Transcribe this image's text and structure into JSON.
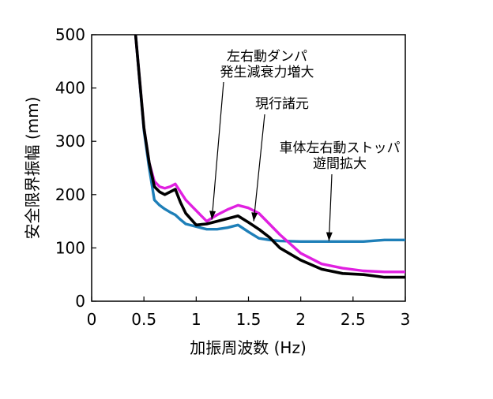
{
  "chart_data": {
    "type": "line",
    "xlabel": "加振周波数 (Hz)",
    "ylabel": "安全限界振幅 (mm)",
    "xlim": [
      0,
      3
    ],
    "ylim": [
      0,
      500
    ],
    "xticks": [
      "0",
      "0.5",
      "1",
      "1.5",
      "2",
      "2.5",
      "3"
    ],
    "yticks": [
      "0",
      "100",
      "200",
      "300",
      "400",
      "500"
    ],
    "grid": false,
    "series": [
      {
        "name": "現行諸元",
        "color": "#000000",
        "x": [
          0.42,
          0.5,
          0.55,
          0.6,
          0.65,
          0.7,
          0.75,
          0.8,
          0.85,
          0.9,
          1.0,
          1.1,
          1.2,
          1.3,
          1.4,
          1.5,
          1.6,
          1.7,
          1.8,
          2.0,
          2.2,
          2.4,
          2.6,
          2.8,
          3.0
        ],
        "y": [
          500,
          325,
          260,
          215,
          205,
          200,
          205,
          210,
          185,
          165,
          143,
          145,
          150,
          155,
          160,
          148,
          135,
          120,
          100,
          77,
          60,
          52,
          50,
          45,
          45
        ]
      },
      {
        "name": "左右動ダンパ発生減衰力増大",
        "color": "#e020e0",
        "x": [
          0.42,
          0.5,
          0.55,
          0.6,
          0.65,
          0.7,
          0.75,
          0.8,
          0.85,
          0.9,
          1.0,
          1.1,
          1.2,
          1.3,
          1.4,
          1.5,
          1.6,
          1.7,
          1.8,
          2.0,
          2.2,
          2.4,
          2.6,
          2.8,
          3.0
        ],
        "y": [
          500,
          325,
          260,
          225,
          215,
          212,
          215,
          220,
          205,
          190,
          170,
          150,
          162,
          172,
          180,
          175,
          165,
          145,
          125,
          90,
          70,
          62,
          57,
          55,
          55
        ]
      },
      {
        "name": "車体左右動ストッパ遊間拡大",
        "color": "#1e7fb8",
        "x": [
          0.42,
          0.5,
          0.55,
          0.6,
          0.65,
          0.7,
          0.75,
          0.8,
          0.85,
          0.9,
          1.0,
          1.1,
          1.2,
          1.3,
          1.4,
          1.5,
          1.6,
          1.7,
          1.8,
          2.0,
          2.2,
          2.4,
          2.6,
          2.8,
          3.0
        ],
        "y": [
          500,
          320,
          250,
          190,
          180,
          173,
          167,
          162,
          153,
          145,
          140,
          135,
          135,
          138,
          143,
          130,
          118,
          115,
          113,
          112,
          112,
          112,
          112,
          115,
          115
        ]
      }
    ],
    "annotations": [
      {
        "lines": [
          "左右動ダンパ",
          "発生減衰力増大"
        ],
        "series_index": 1,
        "target": [
          1.15,
          153
        ]
      },
      {
        "lines": [
          "現行諸元"
        ],
        "series_index": 0,
        "target": [
          1.55,
          150
        ]
      },
      {
        "lines": [
          "車体左右動ストッパ",
          "遊間拡大"
        ],
        "series_index": 2,
        "target": [
          2.27,
          113
        ]
      }
    ]
  }
}
